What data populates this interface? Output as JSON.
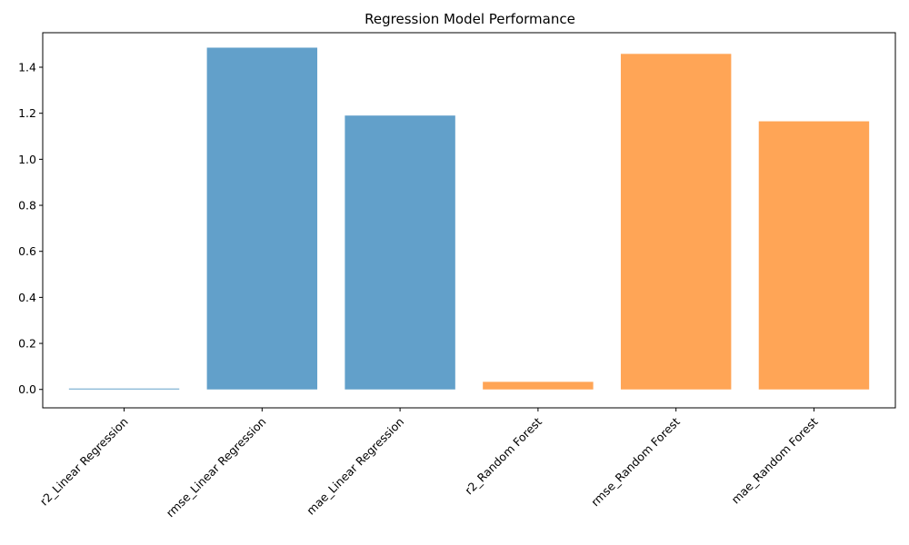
{
  "chart_data": {
    "type": "bar",
    "title": "Regression Model Performance",
    "xlabel": "",
    "ylabel": "",
    "categories": [
      "r2_Linear Regression",
      "rmse_Linear Regression",
      "mae_Linear Regression",
      "r2_Random Forest",
      "rmse_Random Forest",
      "mae_Random Forest"
    ],
    "values": [
      0.003,
      1.485,
      1.19,
      0.033,
      1.458,
      1.165
    ],
    "bar_colors": [
      "#1f77b4",
      "#1f77b4",
      "#1f77b4",
      "#ff7f0e",
      "#ff7f0e",
      "#ff7f0e"
    ],
    "bar_alpha": 0.7,
    "ylim": [
      -0.08,
      1.55
    ],
    "yticks": [
      0.0,
      0.2,
      0.4,
      0.6,
      0.8,
      1.0,
      1.2,
      1.4
    ],
    "ytick_labels": [
      "0.0",
      "0.2",
      "0.4",
      "0.6",
      "0.8",
      "1.0",
      "1.2",
      "1.4"
    ],
    "grid": false,
    "legend": "none"
  }
}
